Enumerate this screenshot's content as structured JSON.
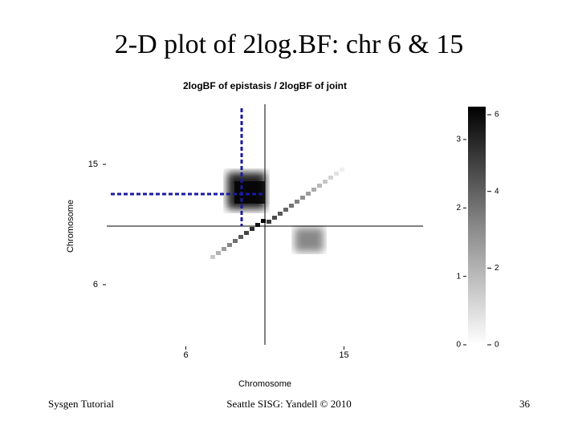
{
  "slide": {
    "title": "2-D plot of 2log.BF: chr 6 & 15",
    "footer_left": "Sysgen Tutorial",
    "footer_center": "Seattle SISG: Yandell © 2010",
    "page": "36"
  },
  "chart_data": {
    "type": "heatmap",
    "title": "2logBF of epistasis / 2logBF of joint",
    "xlabel": "Chromosome",
    "ylabel": "Chromosome",
    "x_categories": [
      "6",
      "15"
    ],
    "y_categories": [
      "6",
      "15"
    ],
    "colorbar": {
      "left_lim": [
        0,
        3.48
      ],
      "left_ticks": [
        0,
        1,
        2,
        3
      ],
      "right_lim": [
        0,
        6.21
      ],
      "right_ticks": [
        0,
        2,
        4,
        6
      ]
    }
  }
}
